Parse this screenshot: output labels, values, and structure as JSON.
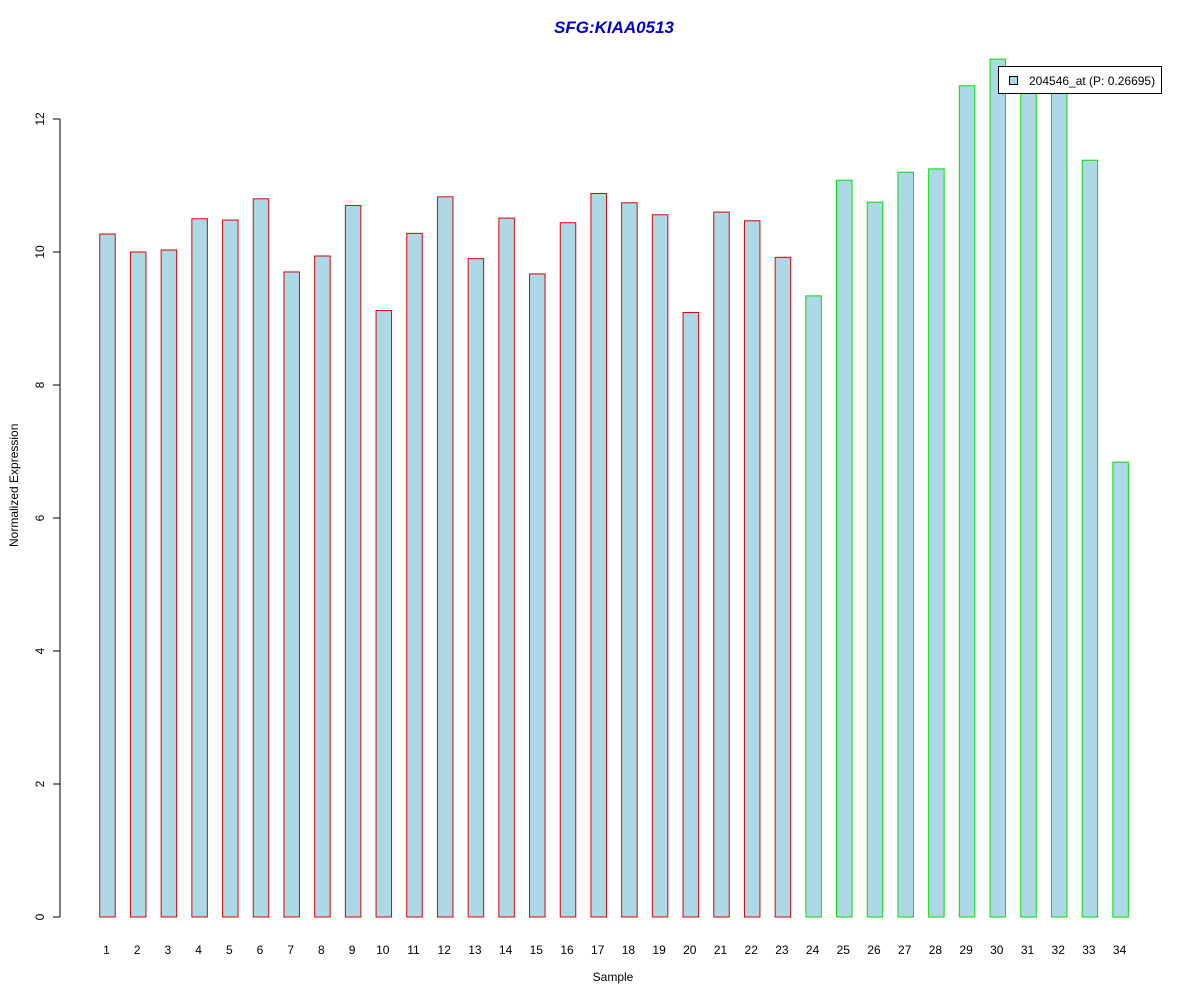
{
  "chart_data": {
    "type": "bar",
    "title": "SFG:KIAA0513",
    "xlabel": "Sample",
    "ylabel": "Normalized Expression",
    "ylim": [
      0,
      13
    ],
    "yticks": [
      "0",
      "2",
      "4",
      "6",
      "8",
      "10",
      "12"
    ],
    "categories": [
      "1",
      "2",
      "3",
      "4",
      "5",
      "6",
      "7",
      "8",
      "9",
      "10",
      "11",
      "12",
      "13",
      "14",
      "15",
      "16",
      "17",
      "18",
      "19",
      "20",
      "21",
      "22",
      "23",
      "24",
      "25",
      "26",
      "27",
      "28",
      "29",
      "30",
      "31",
      "32",
      "33",
      "34"
    ],
    "values": [
      10.27,
      10.0,
      10.03,
      10.5,
      10.48,
      10.8,
      9.7,
      9.94,
      10.7,
      9.12,
      10.28,
      10.83,
      9.9,
      10.51,
      9.67,
      10.44,
      10.88,
      10.74,
      10.56,
      9.09,
      10.6,
      10.47,
      9.92,
      9.34,
      11.08,
      10.75,
      11.2,
      11.25,
      12.5,
      12.9,
      12.4,
      12.4,
      11.38,
      6.84
    ],
    "groups": [
      "red",
      "red",
      "red",
      "red",
      "red",
      "red",
      "red",
      "red",
      "red",
      "red",
      "red",
      "red",
      "red",
      "red",
      "red",
      "red",
      "red",
      "red",
      "red",
      "red",
      "red",
      "red",
      "red",
      "green",
      "green",
      "green",
      "green",
      "green",
      "green",
      "green",
      "green",
      "green",
      "green",
      "green"
    ],
    "colors": {
      "fill": "#add8e6",
      "red": "#e00000",
      "green": "#00e000",
      "title": "#0000cc"
    },
    "legend": {
      "label": "204546_at (P: 0.26695)",
      "position": "top-right"
    },
    "grid": false
  }
}
